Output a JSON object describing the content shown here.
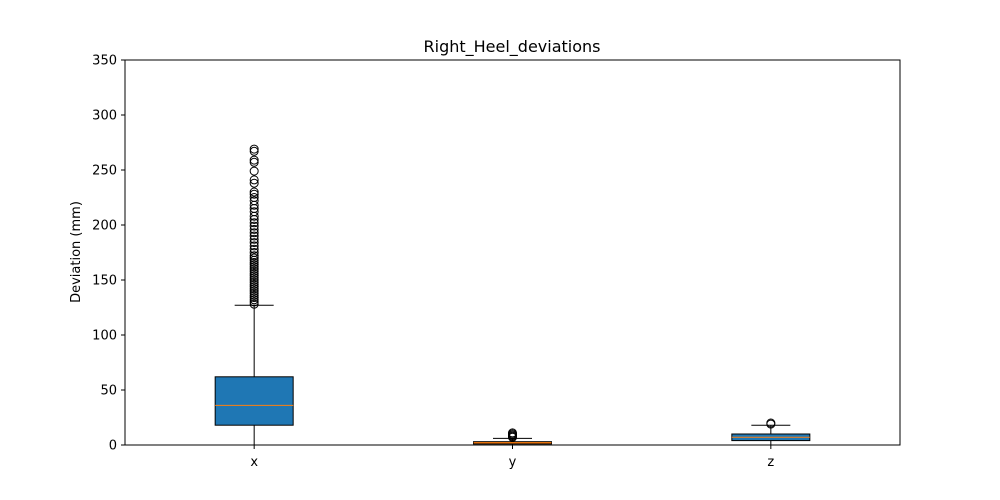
{
  "chart_data": {
    "type": "box",
    "title": "Right_Heel_deviations",
    "xlabel": "",
    "ylabel": "Deviation (mm)",
    "ylim": [
      0,
      350
    ],
    "yticks": [
      0,
      50,
      100,
      150,
      200,
      250,
      300,
      350
    ],
    "categories": [
      "x",
      "y",
      "z"
    ],
    "grid": false,
    "series": [
      {
        "category": "x",
        "color": "#1f77b4",
        "whisker_low": 0,
        "q1": 18,
        "median": 36,
        "q3": 62,
        "whisker_high": 127,
        "outliers": [
          128,
          130,
          132,
          134,
          136,
          138,
          140,
          142,
          144,
          146,
          148,
          150,
          152,
          154,
          156,
          158,
          160,
          162,
          164,
          166,
          168,
          170,
          172,
          175,
          178,
          181,
          184,
          187,
          190,
          193,
          196,
          199,
          202,
          205,
          208,
          212,
          215,
          218,
          222,
          225,
          228,
          230,
          238,
          241,
          249,
          257,
          259,
          267,
          269
        ]
      },
      {
        "category": "y",
        "color": "#ff7f0e",
        "whisker_low": 0,
        "q1": 1,
        "median": 2,
        "q3": 3,
        "whisker_high": 6,
        "outliers": [
          7,
          8,
          9,
          10,
          11
        ]
      },
      {
        "category": "z",
        "color": "#1f77b4",
        "whisker_low": 0,
        "q1": 4,
        "median": 7,
        "q3": 10,
        "whisker_high": 18,
        "outliers": [
          19,
          20
        ]
      }
    ],
    "median_color": "#ff7f0e"
  }
}
